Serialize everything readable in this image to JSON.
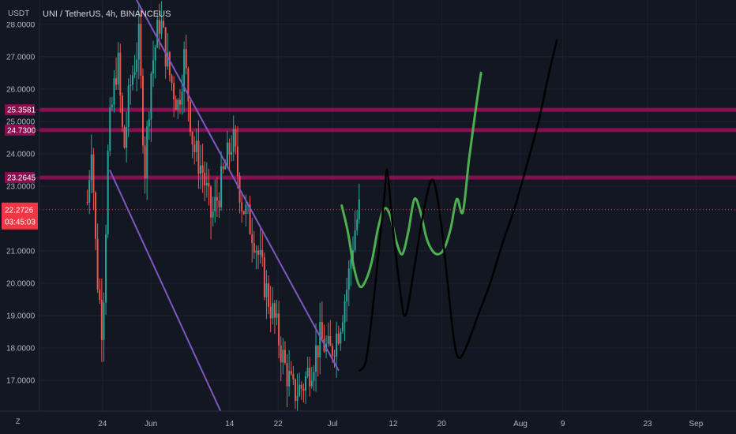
{
  "header": {
    "currency": "USDT",
    "symbol_title": "UNI / TetherUS, 4h, BINANCEUS"
  },
  "price_tag": {
    "value": "22.2726",
    "countdown": "03:45:03",
    "color": "#f23645"
  },
  "time_zone_label": "Z",
  "chart_data": {
    "type": "candlestick",
    "y_ticks": [
      {
        "value": 28,
        "label": "28.0000"
      },
      {
        "value": 27,
        "label": "27.0000"
      },
      {
        "value": 26,
        "label": "26.0000"
      },
      {
        "value": 25,
        "label": "25.0000"
      },
      {
        "value": 24,
        "label": "24.0000"
      },
      {
        "value": 23,
        "label": "23.0000"
      },
      {
        "value": 21,
        "label": "21.0000"
      },
      {
        "value": 20,
        "label": "20.0000"
      },
      {
        "value": 19,
        "label": "19.0000"
      },
      {
        "value": 18,
        "label": "18.0000"
      },
      {
        "value": 17,
        "label": "17.0000"
      }
    ],
    "x_ticks": [
      {
        "day": 24,
        "label": "24"
      },
      {
        "day": 32,
        "label": "Jun"
      },
      {
        "day": 45,
        "label": "14"
      },
      {
        "day": 53,
        "label": "22"
      },
      {
        "day": 62,
        "label": "Jul"
      },
      {
        "day": 72,
        "label": "12"
      },
      {
        "day": 80,
        "label": "20"
      },
      {
        "day": 93,
        "label": "Aug"
      },
      {
        "day": 100,
        "label": "9"
      },
      {
        "day": 114,
        "label": "23"
      },
      {
        "day": 122,
        "label": "Sep"
      }
    ],
    "ylim": [
      16.05,
      28.75
    ],
    "xlim": [
      13.6,
      128.6
    ],
    "horizontal_levels": [
      {
        "value": 25.3581,
        "label": "25.3581"
      },
      {
        "value": 24.73,
        "label": "24.7300"
      },
      {
        "value": 23.2645,
        "label": "23.2645"
      }
    ],
    "level_color": "#880e4f",
    "current_price": 22.2726,
    "up_color": "#26a69a",
    "down_color": "#ef5350",
    "channel_color": "#7e57c2",
    "channel_lines": [
      {
        "name": "channel-upper",
        "points": [
          [
            29.5,
            28.8
          ],
          [
            63,
            17.3
          ]
        ]
      },
      {
        "name": "channel-lower",
        "points": [
          [
            25.2,
            23.5
          ],
          [
            43.5,
            16.05
          ]
        ]
      }
    ],
    "drawings": [
      {
        "name": "green-projection",
        "color": "#4caf50",
        "points": [
          [
            63.5,
            22.4
          ],
          [
            64.5,
            21.6
          ],
          [
            65.5,
            20.5
          ],
          [
            66.5,
            19.9
          ],
          [
            67.5,
            20.1
          ],
          [
            68.5,
            20.7
          ],
          [
            69.5,
            21.7
          ],
          [
            70.5,
            22.3
          ],
          [
            71.5,
            22.1
          ],
          [
            72.5,
            21.3
          ],
          [
            73.5,
            20.9
          ],
          [
            74.5,
            21.6
          ],
          [
            75.5,
            22.6
          ],
          [
            76.5,
            22.2
          ],
          [
            77.5,
            21.4
          ],
          [
            78.5,
            21.0
          ],
          [
            79.5,
            20.9
          ],
          [
            80.5,
            21.1
          ],
          [
            81.5,
            21.7
          ],
          [
            82.5,
            22.6
          ],
          [
            83.5,
            22.2
          ],
          [
            84.5,
            23.8
          ],
          [
            85.5,
            25.2
          ],
          [
            86.5,
            26.5
          ]
        ]
      },
      {
        "name": "black-projection",
        "color": "#000000",
        "points": [
          [
            66.5,
            17.3
          ],
          [
            67.5,
            17.6
          ],
          [
            68.5,
            19.0
          ],
          [
            69.5,
            20.8
          ],
          [
            70.5,
            22.6
          ],
          [
            71.0,
            23.5
          ],
          [
            71.8,
            22.0
          ],
          [
            73.0,
            20.0
          ],
          [
            74.0,
            19.0
          ],
          [
            75.5,
            20.5
          ],
          [
            77.0,
            22.2
          ],
          [
            78.5,
            23.2
          ],
          [
            79.8,
            22.0
          ],
          [
            81.0,
            20.0
          ],
          [
            82.0,
            18.3
          ],
          [
            82.8,
            17.7
          ],
          [
            84.0,
            18.0
          ],
          [
            86.0,
            19.0
          ],
          [
            88.0,
            20.0
          ],
          [
            90.0,
            21.2
          ],
          [
            92.0,
            22.3
          ],
          [
            94.0,
            23.6
          ],
          [
            96.0,
            25.0
          ],
          [
            97.5,
            26.3
          ],
          [
            99.0,
            27.5
          ]
        ]
      }
    ]
  }
}
